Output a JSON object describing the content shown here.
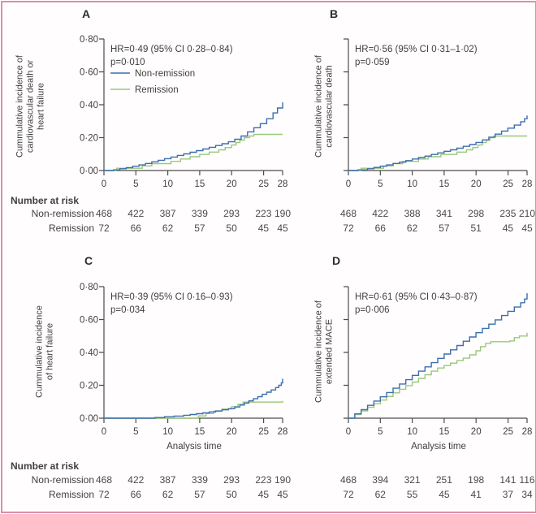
{
  "figure": {
    "border_color": "#dd8ea8",
    "background": "#fffdfd",
    "text_color": "#3f3f3f",
    "axis_color": "#4d4d4d"
  },
  "risk_table": {
    "header": "Number at risk",
    "row_labels": [
      "Non-remission",
      "Remission"
    ]
  },
  "xlabel": "Analysis time",
  "chart_data": {
    "type": "line",
    "subtype": "cumulative-incidence-step-curves",
    "x_range": [
      0,
      28
    ],
    "y_range": [
      0,
      0.8
    ],
    "x_ticks": [
      "0",
      "5",
      "10",
      "15",
      "20",
      "25",
      "28"
    ],
    "y_ticks": [
      "0·00",
      "0·20",
      "0·40",
      "0·60",
      "0·80"
    ],
    "legend_position": "top-left-panel-A",
    "panels": [
      {
        "letter": "A",
        "ylabel_lines": [
          "Cummulative incidence of",
          "cardiovascular death or",
          "heart failure"
        ],
        "hr": "HR=0·49 (95% CI 0·28–0·84)",
        "p": "p=0·010",
        "series": [
          {
            "name": "Non-remission",
            "color": "#3c6eae",
            "points": [
              [
                0,
                0
              ],
              [
                1.5,
                0.004
              ],
              [
                2.5,
                0.011
              ],
              [
                3.5,
                0.018
              ],
              [
                4.5,
                0.026
              ],
              [
                5.5,
                0.034
              ],
              [
                6.5,
                0.043
              ],
              [
                7.5,
                0.053
              ],
              [
                8.5,
                0.062
              ],
              [
                9.5,
                0.072
              ],
              [
                10.5,
                0.082
              ],
              [
                11.5,
                0.092
              ],
              [
                12.5,
                0.101
              ],
              [
                13.5,
                0.111
              ],
              [
                14.5,
                0.121
              ],
              [
                15.5,
                0.131
              ],
              [
                16.5,
                0.141
              ],
              [
                17.5,
                0.152
              ],
              [
                18.5,
                0.163
              ],
              [
                19.5,
                0.175
              ],
              [
                20.5,
                0.19
              ],
              [
                21.5,
                0.21
              ],
              [
                22.5,
                0.235
              ],
              [
                23.5,
                0.26
              ],
              [
                24.5,
                0.285
              ],
              [
                25.5,
                0.315
              ],
              [
                26.5,
                0.35
              ],
              [
                27.2,
                0.38
              ],
              [
                28,
                0.415
              ]
            ]
          },
          {
            "name": "Remission",
            "color": "#9bc77d",
            "points": [
              [
                0,
                0
              ],
              [
                2,
                0.014
              ],
              [
                6,
                0.028
              ],
              [
                7.5,
                0.042
              ],
              [
                10.5,
                0.056
              ],
              [
                12,
                0.07
              ],
              [
                13.5,
                0.084
              ],
              [
                15,
                0.098
              ],
              [
                16.5,
                0.112
              ],
              [
                18,
                0.126
              ],
              [
                19,
                0.14
              ],
              [
                20,
                0.155
              ],
              [
                20.7,
                0.17
              ],
              [
                21.3,
                0.185
              ],
              [
                22,
                0.2
              ],
              [
                22.8,
                0.21
              ],
              [
                23.5,
                0.22
              ],
              [
                28,
                0.22
              ]
            ]
          }
        ],
        "number_at_risk": [
          [
            "468",
            "422",
            "387",
            "339",
            "293",
            "223",
            "190"
          ],
          [
            "72",
            "66",
            "62",
            "57",
            "50",
            "45",
            "45"
          ]
        ]
      },
      {
        "letter": "B",
        "ylabel_lines": [
          "Cummulative incidence of",
          "cardiovascular death"
        ],
        "hr": "HR=0·56 (95% CI 0·31–1·02)",
        "p": "p=0·059",
        "series": [
          {
            "name": "Non-remission",
            "color": "#3c6eae",
            "points": [
              [
                0,
                0
              ],
              [
                1.5,
                0.004
              ],
              [
                3,
                0.011
              ],
              [
                4,
                0.019
              ],
              [
                5,
                0.026
              ],
              [
                6,
                0.034
              ],
              [
                7,
                0.043
              ],
              [
                8,
                0.051
              ],
              [
                9,
                0.06
              ],
              [
                10,
                0.07
              ],
              [
                11,
                0.079
              ],
              [
                12,
                0.088
              ],
              [
                13,
                0.098
              ],
              [
                14,
                0.107
              ],
              [
                15,
                0.117
              ],
              [
                16,
                0.126
              ],
              [
                17,
                0.136
              ],
              [
                18,
                0.147
              ],
              [
                19,
                0.158
              ],
              [
                20,
                0.171
              ],
              [
                21,
                0.186
              ],
              [
                22,
                0.203
              ],
              [
                23,
                0.221
              ],
              [
                24,
                0.24
              ],
              [
                25,
                0.258
              ],
              [
                26,
                0.276
              ],
              [
                27,
                0.297
              ],
              [
                27.6,
                0.315
              ],
              [
                28,
                0.335
              ]
            ]
          },
          {
            "name": "Remission",
            "color": "#9bc77d",
            "points": [
              [
                0,
                0
              ],
              [
                2,
                0.014
              ],
              [
                5.5,
                0.028
              ],
              [
                7,
                0.042
              ],
              [
                8.5,
                0.056
              ],
              [
                11,
                0.07
              ],
              [
                12.5,
                0.084
              ],
              [
                14.5,
                0.098
              ],
              [
                17,
                0.112
              ],
              [
                18.5,
                0.126
              ],
              [
                19.5,
                0.14
              ],
              [
                20.3,
                0.155
              ],
              [
                21,
                0.17
              ],
              [
                21.6,
                0.185
              ],
              [
                22.2,
                0.2
              ],
              [
                22.8,
                0.21
              ],
              [
                28,
                0.21
              ]
            ]
          }
        ],
        "number_at_risk": [
          [
            "468",
            "422",
            "388",
            "341",
            "298",
            "235",
            "210"
          ],
          [
            "72",
            "66",
            "62",
            "57",
            "51",
            "45",
            "45"
          ]
        ]
      },
      {
        "letter": "C",
        "ylabel_lines": [
          "Cummulative incidence",
          "of heart failure"
        ],
        "hr": "HR=0·39 (95% CI 0·16–0·93)",
        "p": "p=0·034",
        "series": [
          {
            "name": "Non-remission",
            "color": "#3c6eae",
            "points": [
              [
                0,
                0
              ],
              [
                8,
                0.004
              ],
              [
                9.5,
                0.009
              ],
              [
                11,
                0.013
              ],
              [
                12.5,
                0.018
              ],
              [
                13.5,
                0.022
              ],
              [
                14.5,
                0.027
              ],
              [
                15.5,
                0.032
              ],
              [
                16.5,
                0.038
              ],
              [
                17.5,
                0.044
              ],
              [
                18.5,
                0.051
              ],
              [
                19.5,
                0.058
              ],
              [
                20.5,
                0.068
              ],
              [
                21.3,
                0.08
              ],
              [
                22,
                0.092
              ],
              [
                22.7,
                0.105
              ],
              [
                23.4,
                0.118
              ],
              [
                24.1,
                0.131
              ],
              [
                24.8,
                0.145
              ],
              [
                25.5,
                0.158
              ],
              [
                26.2,
                0.172
              ],
              [
                26.9,
                0.186
              ],
              [
                27.4,
                0.2
              ],
              [
                27.8,
                0.215
              ],
              [
                28,
                0.24
              ]
            ]
          },
          {
            "name": "Remission",
            "color": "#9bc77d",
            "points": [
              [
                0,
                0
              ],
              [
                14.8,
                0.014
              ],
              [
                16,
                0.028
              ],
              [
                17.2,
                0.042
              ],
              [
                18.5,
                0.056
              ],
              [
                20,
                0.07
              ],
              [
                21,
                0.084
              ],
              [
                21.8,
                0.098
              ],
              [
                28,
                0.105
              ]
            ]
          }
        ],
        "number_at_risk": [
          [
            "468",
            "422",
            "387",
            "339",
            "293",
            "223",
            "190"
          ],
          [
            "72",
            "66",
            "62",
            "57",
            "50",
            "45",
            "45"
          ]
        ]
      },
      {
        "letter": "D",
        "ylabel_lines": [
          "Cummulative incidence of",
          "extended MACE"
        ],
        "hr": "HR=0·61 (95% CI 0·43–0·87)",
        "p": "p=0·006",
        "series": [
          {
            "name": "Non-remission",
            "color": "#3c6eae",
            "points": [
              [
                0,
                0
              ],
              [
                1,
                0.026
              ],
              [
                2,
                0.052
              ],
              [
                3,
                0.078
              ],
              [
                4,
                0.104
              ],
              [
                5,
                0.13
              ],
              [
                6,
                0.156
              ],
              [
                7,
                0.182
              ],
              [
                8,
                0.208
              ],
              [
                9,
                0.234
              ],
              [
                10,
                0.26
              ],
              [
                11,
                0.286
              ],
              [
                12,
                0.312
              ],
              [
                13,
                0.338
              ],
              [
                14,
                0.364
              ],
              [
                15,
                0.39
              ],
              [
                16,
                0.416
              ],
              [
                17,
                0.442
              ],
              [
                18,
                0.468
              ],
              [
                19,
                0.494
              ],
              [
                20,
                0.52
              ],
              [
                21,
                0.546
              ],
              [
                22,
                0.572
              ],
              [
                23,
                0.598
              ],
              [
                24,
                0.624
              ],
              [
                25,
                0.65
              ],
              [
                26,
                0.676
              ],
              [
                27,
                0.702
              ],
              [
                27.6,
                0.725
              ],
              [
                28,
                0.76
              ]
            ]
          },
          {
            "name": "Remission",
            "color": "#9bc77d",
            "points": [
              [
                0,
                0
              ],
              [
                1,
                0.022
              ],
              [
                2,
                0.044
              ],
              [
                3,
                0.066
              ],
              [
                4,
                0.088
              ],
              [
                5,
                0.11
              ],
              [
                6,
                0.132
              ],
              [
                7,
                0.154
              ],
              [
                8,
                0.176
              ],
              [
                9,
                0.198
              ],
              [
                10,
                0.22
              ],
              [
                11,
                0.242
              ],
              [
                12,
                0.264
              ],
              [
                13,
                0.286
              ],
              [
                14,
                0.305
              ],
              [
                15,
                0.32
              ],
              [
                16,
                0.335
              ],
              [
                17,
                0.35
              ],
              [
                18,
                0.365
              ],
              [
                19,
                0.385
              ],
              [
                20,
                0.41
              ],
              [
                20.7,
                0.435
              ],
              [
                21.5,
                0.455
              ],
              [
                22.3,
                0.465
              ],
              [
                25.3,
                0.47
              ],
              [
                26,
                0.49
              ],
              [
                26.8,
                0.5
              ],
              [
                28,
                0.52
              ]
            ]
          }
        ],
        "number_at_risk": [
          [
            "468",
            "394",
            "321",
            "251",
            "198",
            "141",
            "116"
          ],
          [
            "72",
            "62",
            "55",
            "45",
            "41",
            "37",
            "34"
          ]
        ]
      }
    ]
  }
}
